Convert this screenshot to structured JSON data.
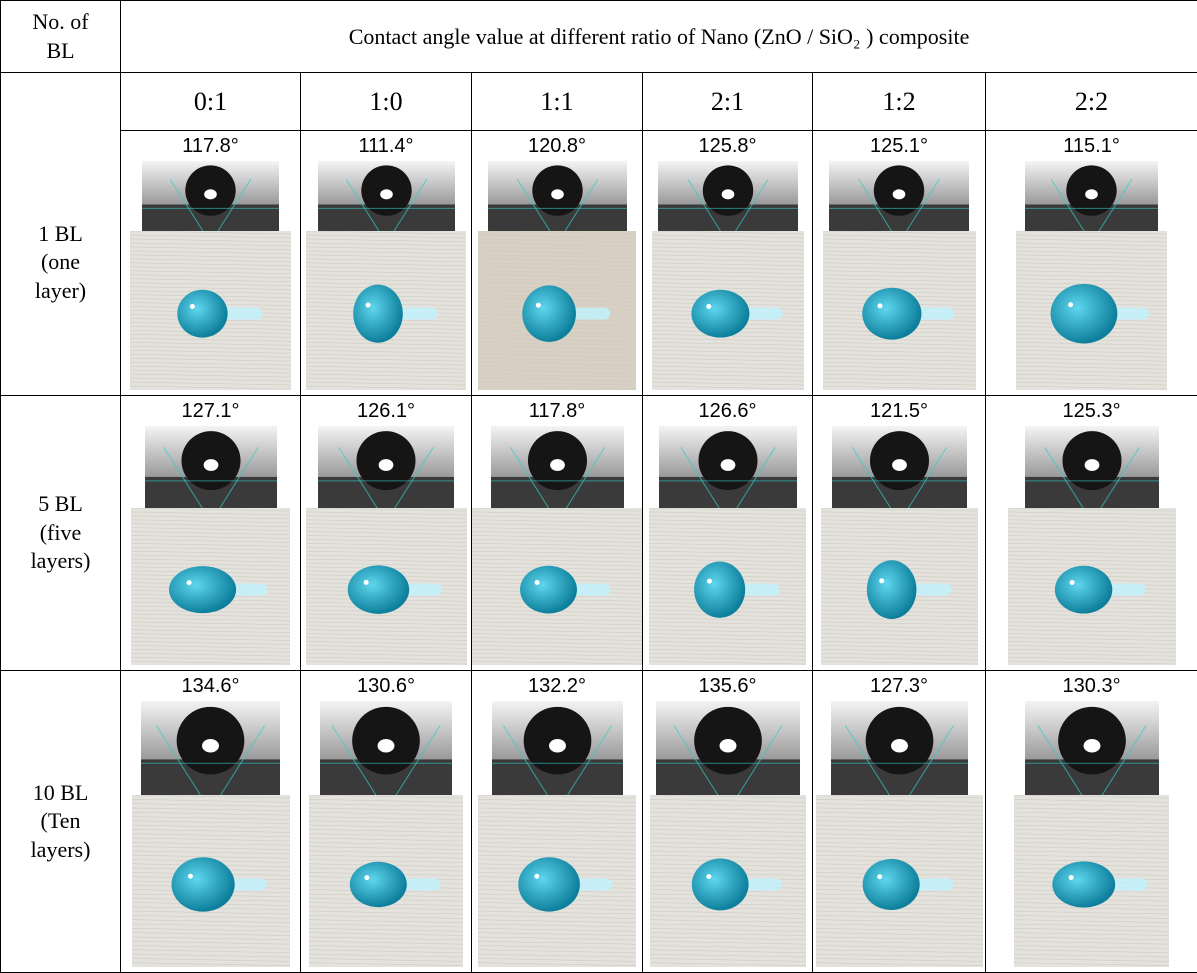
{
  "header": {
    "corner": "No. of\nBL",
    "title": "Contact angle value at different ratio of  Nano (ZnO / SiO₂ )  composite"
  },
  "ratios": [
    "0:1",
    "1:0",
    "1:1",
    "2:1",
    "1:2",
    "2:2"
  ],
  "rows": [
    {
      "label": "1 BL\n(one\nlayer)",
      "angles": [
        "117.8°",
        "111.4°",
        "120.8°",
        "125.8°",
        "125.1°",
        "115.1°"
      ]
    },
    {
      "label": "5 BL\n(five\nlayers)",
      "angles": [
        "127.1°",
        "126.1°",
        "117.8°",
        "126.6°",
        "121.5°",
        "125.3°"
      ]
    },
    {
      "label": "10 BL\n(Ten\nlayers)",
      "angles": [
        "134.6°",
        "130.6°",
        "132.2°",
        "135.6°",
        "127.3°",
        "130.3°"
      ]
    }
  ]
}
